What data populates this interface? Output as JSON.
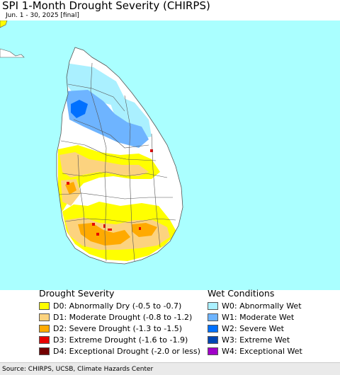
{
  "header": {
    "title": "SPI 1-Month Drought Severity (CHIRPS)",
    "subtitle": "Jun. 1 - 30, 2025 [final]"
  },
  "colors": {
    "ocean": "#aaffff",
    "land": "#ffffff",
    "boundary": "#555555"
  },
  "legend": {
    "drought_title": "Drought Severity",
    "drought_items": [
      {
        "label": "D0: Abnormally Dry (-0.5 to -0.7)",
        "color": "#ffff00"
      },
      {
        "label": "D1: Moderate Drought (-0.8 to -1.2)",
        "color": "#fcd37f"
      },
      {
        "label": "D2: Severe Drought (-1.3 to -1.5)",
        "color": "#ffaa00"
      },
      {
        "label": "D3: Extreme Drought (-1.6 to -1.9)",
        "color": "#e60000"
      },
      {
        "label": "D4: Exceptional Drought (-2.0 or less)",
        "color": "#730000"
      }
    ],
    "wet_title": "Wet Conditions",
    "wet_items": [
      {
        "label": "W0: Abnormally Wet",
        "color": "#aaf0ff"
      },
      {
        "label": "W1: Moderate Wet",
        "color": "#6eb4ff"
      },
      {
        "label": "W2: Severe Wet",
        "color": "#0070ff"
      },
      {
        "label": "W3: Extreme Wet",
        "color": "#0046b4"
      },
      {
        "label": "W4: Exceptional Wet",
        "color": "#a000c8"
      }
    ]
  },
  "footer": {
    "source": "Source: CHIRPS, UCSB, Climate Hazards Center"
  }
}
